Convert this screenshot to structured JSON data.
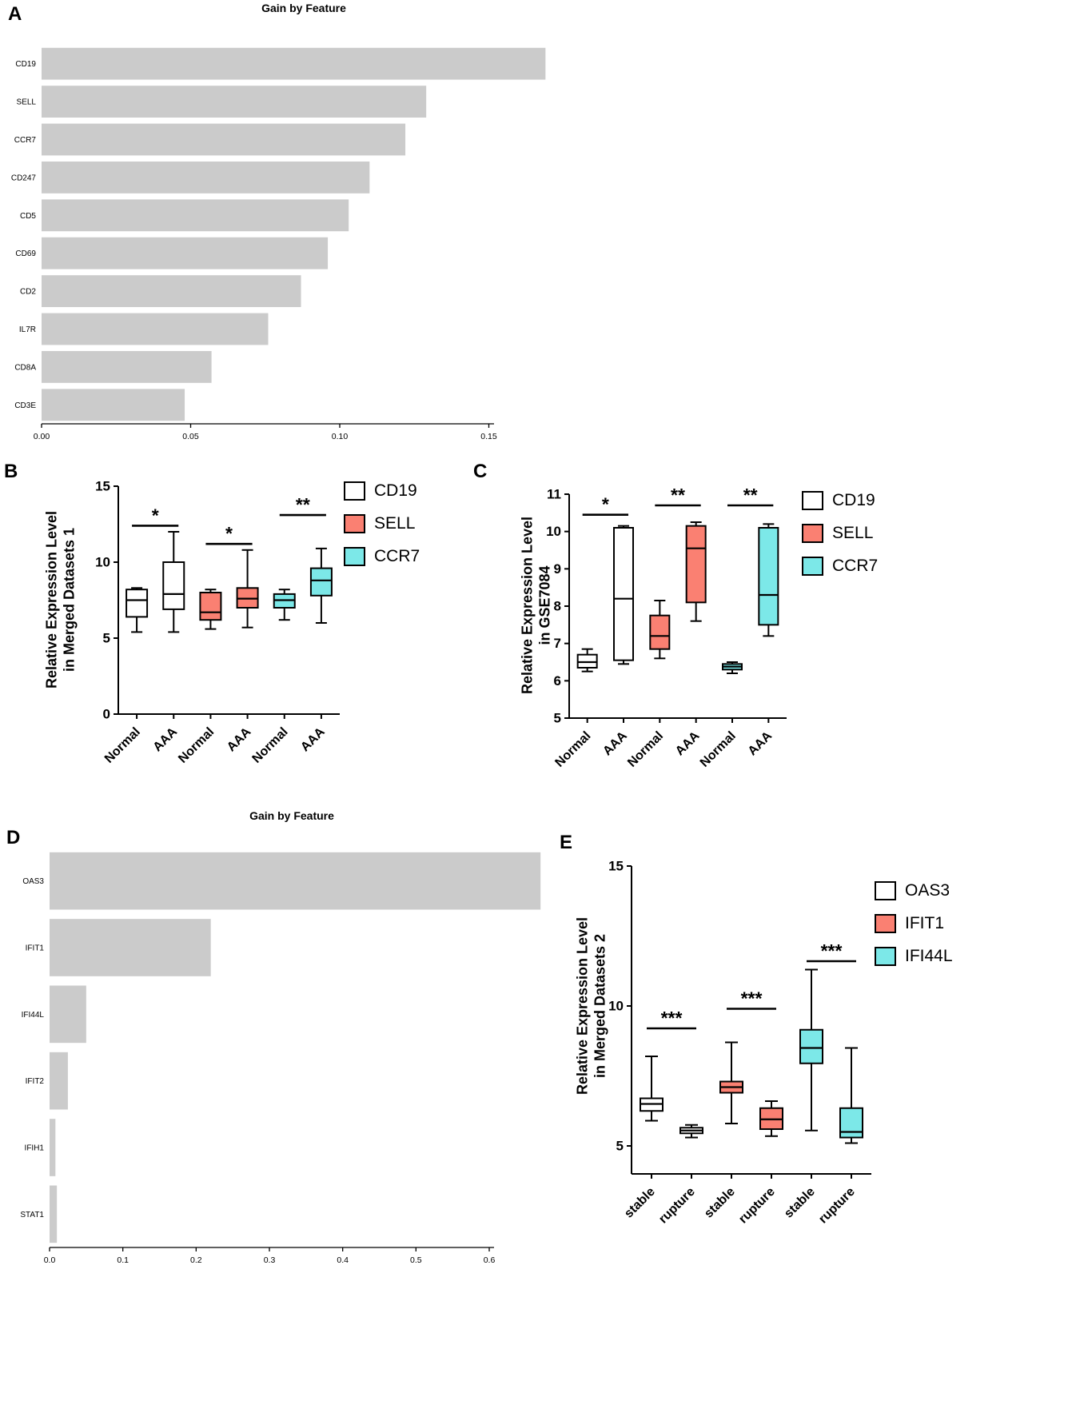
{
  "panels": [
    {
      "label": "A"
    },
    {
      "label": "B"
    },
    {
      "label": "C"
    },
    {
      "label": "D"
    },
    {
      "label": "E"
    }
  ],
  "chart_data": [
    {
      "panel": "A",
      "type": "bar",
      "orientation": "horizontal",
      "title": "Gain by Feature",
      "categories": [
        "CD19",
        "SELL",
        "CCR7",
        "CD247",
        "CD5",
        "CD69",
        "CD2",
        "IL7R",
        "CD8A",
        "CD3E"
      ],
      "values": [
        0.169,
        0.129,
        0.122,
        0.11,
        0.103,
        0.096,
        0.087,
        0.076,
        0.057,
        0.048
      ],
      "xlabel": "",
      "ylabel": "",
      "xlim": [
        0,
        0.15
      ],
      "xtick_values": [
        0,
        0.05,
        0.1,
        0.15
      ],
      "xtick_labels": [
        "0.00",
        "0.05",
        "0.10",
        "0.15"
      ],
      "bar_color": "#cbcbcb",
      "grid": false
    },
    {
      "panel": "B",
      "type": "box",
      "ylabel_lines": [
        "Relative Expression Level",
        "in Merged Datasets 1"
      ],
      "ylim": [
        0,
        15
      ],
      "ytick_values": [
        0,
        5,
        10,
        15
      ],
      "ytick_labels": [
        "0",
        "5",
        "10",
        "15"
      ],
      "categories": [
        "Normal",
        "AAA",
        "Normal",
        "AAA",
        "Normal",
        "AAA"
      ],
      "legend_position": "right",
      "series": [
        {
          "name": "CD19",
          "color": "#ffffff",
          "boxes": [
            {
              "category": "Normal",
              "min": 5.4,
              "q1": 6.4,
              "median": 7.5,
              "q3": 8.2,
              "max": 8.3
            },
            {
              "category": "AAA",
              "min": 5.4,
              "q1": 6.9,
              "median": 7.9,
              "q3": 10.0,
              "max": 12.0
            }
          ]
        },
        {
          "name": "SELL",
          "color": "#fa8072",
          "boxes": [
            {
              "category": "Normal",
              "min": 5.6,
              "q1": 6.2,
              "median": 6.7,
              "q3": 8.0,
              "max": 8.2
            },
            {
              "category": "AAA",
              "min": 5.7,
              "q1": 7.0,
              "median": 7.6,
              "q3": 8.3,
              "max": 10.8
            }
          ]
        },
        {
          "name": "CCR7",
          "color": "#7ce8e8",
          "boxes": [
            {
              "category": "Normal",
              "min": 6.2,
              "q1": 7.0,
              "median": 7.5,
              "q3": 7.9,
              "max": 8.2
            },
            {
              "category": "AAA",
              "min": 6.0,
              "q1": 7.8,
              "median": 8.8,
              "q3": 9.6,
              "max": 10.9
            }
          ]
        }
      ],
      "significance": [
        {
          "pair": [
            0,
            1
          ],
          "label": "*",
          "y": 12.4
        },
        {
          "pair": [
            2,
            3
          ],
          "label": "*",
          "y": 11.2
        },
        {
          "pair": [
            4,
            5
          ],
          "label": "**",
          "y": 13.1
        }
      ]
    },
    {
      "panel": "C",
      "type": "box",
      "ylabel_lines": [
        "Relative Expression Level",
        "in GSE7084"
      ],
      "ylim": [
        5,
        11
      ],
      "ytick_values": [
        5,
        6,
        7,
        8,
        9,
        10,
        11
      ],
      "ytick_labels": [
        "5",
        "6",
        "7",
        "8",
        "9",
        "10",
        "11"
      ],
      "categories": [
        "Normal",
        "AAA",
        "Normal",
        "AAA",
        "Normal",
        "AAA"
      ],
      "legend_position": "right",
      "series": [
        {
          "name": "CD19",
          "color": "#ffffff",
          "boxes": [
            {
              "category": "Normal",
              "min": 6.25,
              "q1": 6.35,
              "median": 6.5,
              "q3": 6.7,
              "max": 6.85
            },
            {
              "category": "AAA",
              "min": 6.45,
              "q1": 6.55,
              "median": 8.2,
              "q3": 10.1,
              "max": 10.15
            }
          ]
        },
        {
          "name": "SELL",
          "color": "#fa8072",
          "boxes": [
            {
              "category": "Normal",
              "min": 6.6,
              "q1": 6.85,
              "median": 7.2,
              "q3": 7.75,
              "max": 8.15
            },
            {
              "category": "AAA",
              "min": 7.6,
              "q1": 8.1,
              "median": 9.55,
              "q3": 10.15,
              "max": 10.25
            }
          ]
        },
        {
          "name": "CCR7",
          "color": "#7ce8e8",
          "boxes": [
            {
              "category": "Normal",
              "min": 6.2,
              "q1": 6.3,
              "median": 6.38,
              "q3": 6.45,
              "max": 6.5
            },
            {
              "category": "AAA",
              "min": 7.2,
              "q1": 7.5,
              "median": 8.3,
              "q3": 10.1,
              "max": 10.2
            }
          ]
        }
      ],
      "significance": [
        {
          "pair": [
            0,
            1
          ],
          "label": "*",
          "y": 10.45
        },
        {
          "pair": [
            2,
            3
          ],
          "label": "**",
          "y": 10.7
        },
        {
          "pair": [
            4,
            5
          ],
          "label": "**",
          "y": 10.7
        }
      ]
    },
    {
      "panel": "D",
      "type": "bar",
      "orientation": "horizontal",
      "title": "Gain by Feature",
      "categories": [
        "OAS3",
        "IFIT1",
        "IFI44L",
        "IFIT2",
        "IFIH1",
        "STAT1"
      ],
      "values": [
        0.67,
        0.22,
        0.05,
        0.025,
        0.008,
        0.01
      ],
      "xlabel": "",
      "ylabel": "",
      "xlim": [
        0,
        0.6
      ],
      "xtick_values": [
        0,
        0.1,
        0.2,
        0.3,
        0.4,
        0.5,
        0.6
      ],
      "xtick_labels": [
        "0.0",
        "0.1",
        "0.2",
        "0.3",
        "0.4",
        "0.5",
        "0.6"
      ],
      "bar_color": "#cbcbcb",
      "grid": false
    },
    {
      "panel": "E",
      "type": "box",
      "ylabel_lines": [
        "Relative Expression Level",
        "in Merged Datasets 2"
      ],
      "ylim": [
        4,
        15
      ],
      "ytick_values": [
        5,
        10,
        15
      ],
      "ytick_labels": [
        "5",
        "10",
        "15"
      ],
      "categories": [
        "stable",
        "rupture",
        "stable",
        "rupture",
        "stable",
        "rupture"
      ],
      "legend_position": "right",
      "series": [
        {
          "name": "OAS3",
          "color": "#ffffff",
          "boxes": [
            {
              "category": "stable",
              "min": 5.9,
              "q1": 6.25,
              "median": 6.5,
              "q3": 6.7,
              "max": 8.2
            },
            {
              "category": "rupture",
              "min": 5.3,
              "q1": 5.45,
              "median": 5.55,
              "q3": 5.65,
              "max": 5.75
            }
          ]
        },
        {
          "name": "IFIT1",
          "color": "#fa8072",
          "boxes": [
            {
              "category": "stable",
              "min": 5.8,
              "q1": 6.9,
              "median": 7.1,
              "q3": 7.3,
              "max": 8.7
            },
            {
              "category": "rupture",
              "min": 5.35,
              "q1": 5.6,
              "median": 5.95,
              "q3": 6.35,
              "max": 6.6
            }
          ]
        },
        {
          "name": "IFI44L",
          "color": "#7ce8e8",
          "boxes": [
            {
              "category": "stable",
              "min": 5.55,
              "q1": 7.95,
              "median": 8.5,
              "q3": 9.15,
              "max": 11.3
            },
            {
              "category": "rupture",
              "min": 5.1,
              "q1": 5.3,
              "median": 5.5,
              "q3": 6.35,
              "max": 8.5
            }
          ]
        }
      ],
      "significance": [
        {
          "pair": [
            0,
            1
          ],
          "label": "***",
          "y": 9.2
        },
        {
          "pair": [
            2,
            3
          ],
          "label": "***",
          "y": 9.9
        },
        {
          "pair": [
            4,
            5
          ],
          "label": "***",
          "y": 11.6
        }
      ]
    }
  ]
}
